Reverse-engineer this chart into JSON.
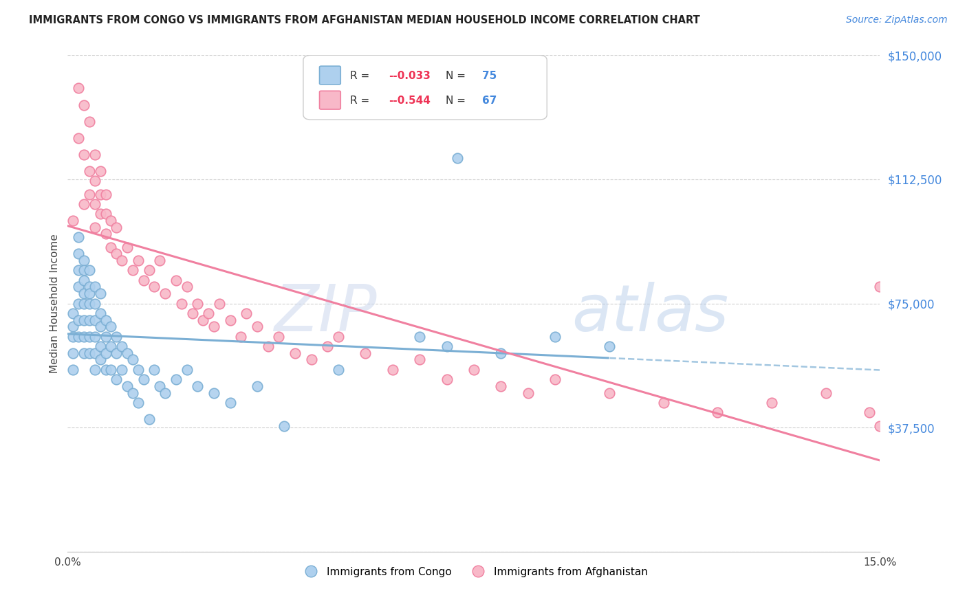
{
  "title": "IMMIGRANTS FROM CONGO VS IMMIGRANTS FROM AFGHANISTAN MEDIAN HOUSEHOLD INCOME CORRELATION CHART",
  "source": "Source: ZipAtlas.com",
  "ylabel": "Median Household Income",
  "xlim": [
    0.0,
    0.15
  ],
  "ylim": [
    0,
    150000
  ],
  "background_color": "#ffffff",
  "grid_color": "#d0d0d0",
  "congo_color": "#7bafd4",
  "congo_color_fill": "#aed0ee",
  "afghanistan_color": "#f080a0",
  "afghanistan_color_fill": "#f8b8c8",
  "congo_label": "Immigrants from Congo",
  "afghanistan_label": "Immigrants from Afghanistan",
  "legend_R_congo": "-0.033",
  "legend_N_congo": "75",
  "legend_R_afghanistan": "-0.544",
  "legend_N_afghanistan": "67",
  "yticks": [
    0,
    37500,
    75000,
    112500,
    150000
  ],
  "ytick_labels": [
    "",
    "$37,500",
    "$75,000",
    "$112,500",
    "$150,000"
  ],
  "congo_scatter_x": [
    0.001,
    0.001,
    0.001,
    0.001,
    0.001,
    0.002,
    0.002,
    0.002,
    0.002,
    0.002,
    0.002,
    0.002,
    0.003,
    0.003,
    0.003,
    0.003,
    0.003,
    0.003,
    0.003,
    0.003,
    0.004,
    0.004,
    0.004,
    0.004,
    0.004,
    0.004,
    0.004,
    0.005,
    0.005,
    0.005,
    0.005,
    0.005,
    0.005,
    0.006,
    0.006,
    0.006,
    0.006,
    0.006,
    0.007,
    0.007,
    0.007,
    0.007,
    0.008,
    0.008,
    0.008,
    0.009,
    0.009,
    0.009,
    0.01,
    0.01,
    0.011,
    0.011,
    0.012,
    0.012,
    0.013,
    0.013,
    0.014,
    0.015,
    0.016,
    0.017,
    0.018,
    0.02,
    0.022,
    0.024,
    0.027,
    0.03,
    0.035,
    0.04,
    0.05,
    0.065,
    0.07,
    0.08,
    0.09,
    0.1,
    0.072
  ],
  "congo_scatter_y": [
    72000,
    68000,
    65000,
    60000,
    55000,
    95000,
    90000,
    85000,
    80000,
    75000,
    70000,
    65000,
    88000,
    85000,
    82000,
    78000,
    75000,
    70000,
    65000,
    60000,
    85000,
    80000,
    78000,
    75000,
    70000,
    65000,
    60000,
    80000,
    75000,
    70000,
    65000,
    60000,
    55000,
    78000,
    72000,
    68000,
    62000,
    58000,
    70000,
    65000,
    60000,
    55000,
    68000,
    62000,
    55000,
    65000,
    60000,
    52000,
    62000,
    55000,
    60000,
    50000,
    58000,
    48000,
    55000,
    45000,
    52000,
    40000,
    55000,
    50000,
    48000,
    52000,
    55000,
    50000,
    48000,
    45000,
    50000,
    38000,
    55000,
    65000,
    62000,
    60000,
    65000,
    62000,
    119000
  ],
  "afghanistan_scatter_x": [
    0.001,
    0.002,
    0.002,
    0.003,
    0.003,
    0.003,
    0.004,
    0.004,
    0.004,
    0.005,
    0.005,
    0.005,
    0.005,
    0.006,
    0.006,
    0.006,
    0.007,
    0.007,
    0.007,
    0.008,
    0.008,
    0.009,
    0.009,
    0.01,
    0.011,
    0.012,
    0.013,
    0.014,
    0.015,
    0.016,
    0.017,
    0.018,
    0.02,
    0.021,
    0.022,
    0.023,
    0.024,
    0.025,
    0.026,
    0.027,
    0.028,
    0.03,
    0.032,
    0.033,
    0.035,
    0.037,
    0.039,
    0.042,
    0.045,
    0.048,
    0.05,
    0.055,
    0.06,
    0.065,
    0.07,
    0.075,
    0.08,
    0.085,
    0.09,
    0.1,
    0.11,
    0.12,
    0.13,
    0.14,
    0.148,
    0.15,
    0.15
  ],
  "afghanistan_scatter_y": [
    100000,
    140000,
    125000,
    135000,
    120000,
    105000,
    130000,
    115000,
    108000,
    120000,
    112000,
    105000,
    98000,
    115000,
    108000,
    102000,
    108000,
    102000,
    96000,
    100000,
    92000,
    98000,
    90000,
    88000,
    92000,
    85000,
    88000,
    82000,
    85000,
    80000,
    88000,
    78000,
    82000,
    75000,
    80000,
    72000,
    75000,
    70000,
    72000,
    68000,
    75000,
    70000,
    65000,
    72000,
    68000,
    62000,
    65000,
    60000,
    58000,
    62000,
    65000,
    60000,
    55000,
    58000,
    52000,
    55000,
    50000,
    48000,
    52000,
    48000,
    45000,
    42000,
    45000,
    48000,
    42000,
    38000,
    80000
  ]
}
